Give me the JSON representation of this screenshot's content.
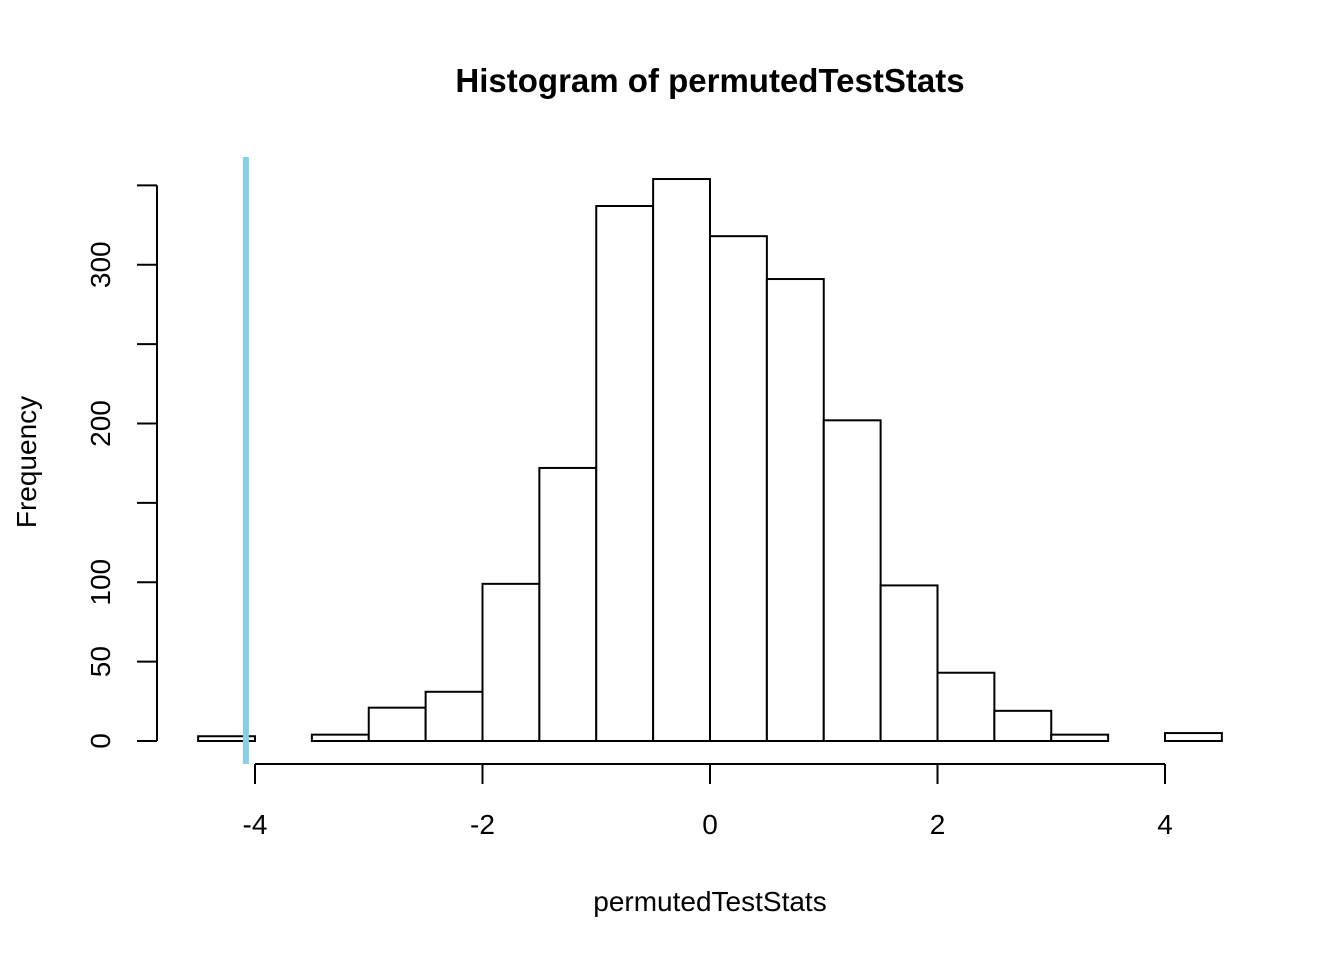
{
  "chart_data": {
    "type": "bar",
    "title": "Histogram of permutedTestStats",
    "xlabel": "permutedTestStats",
    "ylabel": "Frequency",
    "xlim": [
      -4.5,
      4.5
    ],
    "ylim": [
      0,
      350
    ],
    "x_ticks": [
      -4,
      -2,
      0,
      2,
      4
    ],
    "y_ticks": [
      0,
      50,
      100,
      150,
      200,
      250,
      300,
      350
    ],
    "y_tick_labels": [
      "0",
      "50",
      "100",
      "",
      "200",
      "",
      "300",
      ""
    ],
    "bins": [
      {
        "start": -4.5,
        "end": -4.0,
        "count": 3
      },
      {
        "start": -4.0,
        "end": -3.5,
        "count": 0
      },
      {
        "start": -3.5,
        "end": -3.0,
        "count": 4
      },
      {
        "start": -3.0,
        "end": -2.5,
        "count": 21
      },
      {
        "start": -2.5,
        "end": -2.0,
        "count": 31
      },
      {
        "start": -2.0,
        "end": -1.5,
        "count": 99
      },
      {
        "start": -1.5,
        "end": -1.0,
        "count": 172
      },
      {
        "start": -1.0,
        "end": -0.5,
        "count": 337
      },
      {
        "start": -0.5,
        "end": 0.0,
        "count": 354
      },
      {
        "start": 0.0,
        "end": 0.5,
        "count": 318
      },
      {
        "start": 0.5,
        "end": 1.0,
        "count": 291
      },
      {
        "start": 1.0,
        "end": 1.5,
        "count": 202
      },
      {
        "start": 1.5,
        "end": 2.0,
        "count": 98
      },
      {
        "start": 2.0,
        "end": 2.5,
        "count": 43
      },
      {
        "start": 2.5,
        "end": 3.0,
        "count": 19
      },
      {
        "start": 3.0,
        "end": 3.5,
        "count": 4
      },
      {
        "start": 3.5,
        "end": 4.0,
        "count": 0
      },
      {
        "start": 4.0,
        "end": 4.5,
        "count": 5
      }
    ],
    "reference_line": {
      "x": -4.08,
      "color": "#87CEEB"
    },
    "bar_fill": "#ffffff",
    "bar_stroke": "#000000"
  }
}
